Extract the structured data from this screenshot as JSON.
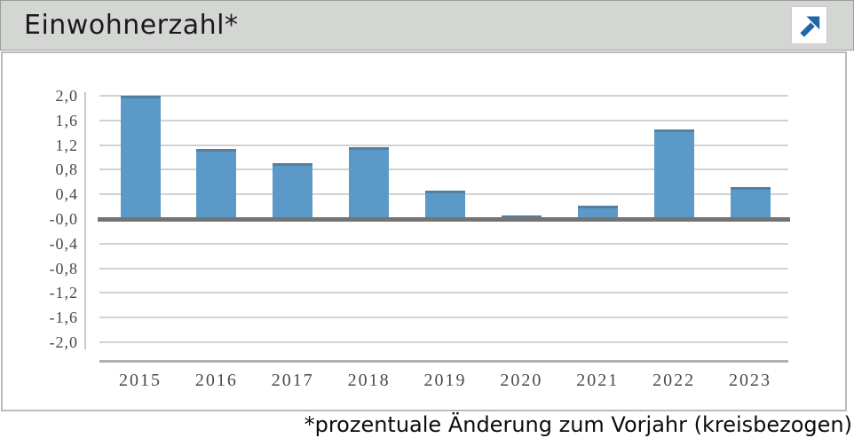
{
  "header": {
    "title": "Einwohnerzahl*",
    "open_button": "open-in-new-window"
  },
  "footer": {
    "note": "*prozentuale Änderung zum Vorjahr (kreisbezogen)"
  },
  "colors": {
    "header_bg": "#d3d6d2",
    "bar": "#5b9ac8",
    "bar_cap": "#53809f",
    "gridline": "#d2d2d2",
    "zero_line": "#747474",
    "axis_line": "#aeb1ae",
    "tick_text": "#474747",
    "icon_blue": "#2066a8"
  },
  "chart_data": {
    "type": "bar",
    "title": "Einwohnerzahl*",
    "categories": [
      "2015",
      "2016",
      "2017",
      "2018",
      "2019",
      "2020",
      "2021",
      "2022",
      "2023"
    ],
    "values": [
      2.0,
      1.13,
      0.9,
      1.16,
      0.46,
      0.05,
      0.21,
      1.45,
      0.52
    ],
    "unit": "percent change vs. previous year",
    "xlabel": "",
    "ylabel": "",
    "ylim": [
      -2.0,
      2.0
    ],
    "ytick_step": 0.4,
    "yticks": {
      "values": [
        2.0,
        1.6,
        1.2,
        0.8,
        0.4,
        0,
        -0.4,
        -0.8,
        -1.2,
        -1.6,
        -2.0
      ],
      "labels": [
        "2,0",
        "1,6",
        "1,2",
        "0,8",
        "0,4",
        "-0,0",
        "-0,4",
        "-0,8",
        "-1,2",
        "-1,6",
        "-2,0"
      ]
    },
    "grid": true,
    "legend": false,
    "note": "*prozentuale Änderung zum Vorjahr (kreisbezogen)"
  }
}
